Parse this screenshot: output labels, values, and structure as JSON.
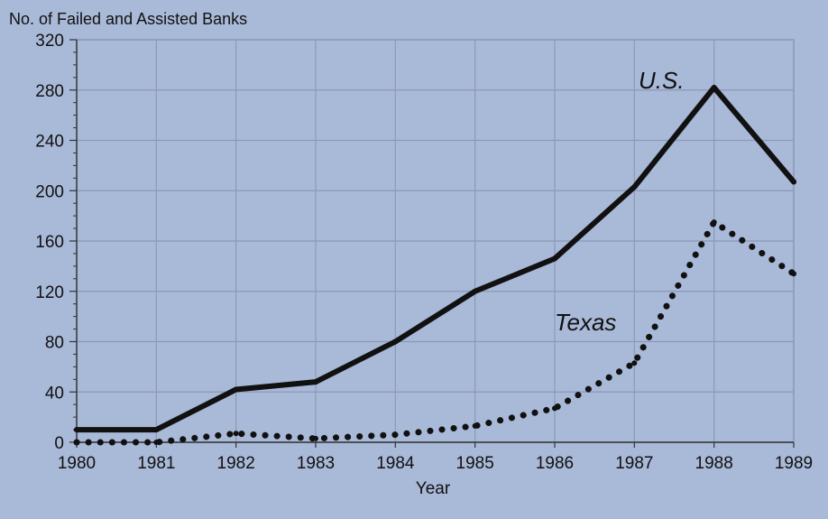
{
  "chart_data": {
    "type": "line",
    "title": "",
    "ylabel": "No. of Failed and Assisted Banks",
    "xlabel": "Year",
    "x": [
      1980,
      1981,
      1982,
      1983,
      1984,
      1985,
      1986,
      1987,
      1988,
      1989
    ],
    "xlim": [
      1980,
      1989
    ],
    "ylim": [
      0,
      320
    ],
    "yticks": [
      0,
      40,
      80,
      120,
      160,
      200,
      240,
      280,
      320
    ],
    "grid": true,
    "series": [
      {
        "name": "U.S.",
        "style": "solid",
        "color": "#111111",
        "values": [
          10,
          10,
          42,
          48,
          80,
          120,
          146,
          203,
          282,
          207
        ]
      },
      {
        "name": "Texas",
        "style": "dotted",
        "color": "#111111",
        "values": [
          0,
          0,
          7,
          3,
          6,
          13,
          27,
          63,
          175,
          134
        ]
      }
    ],
    "background_color": "#a9b9d8",
    "grid_color": "#8c99b6"
  }
}
